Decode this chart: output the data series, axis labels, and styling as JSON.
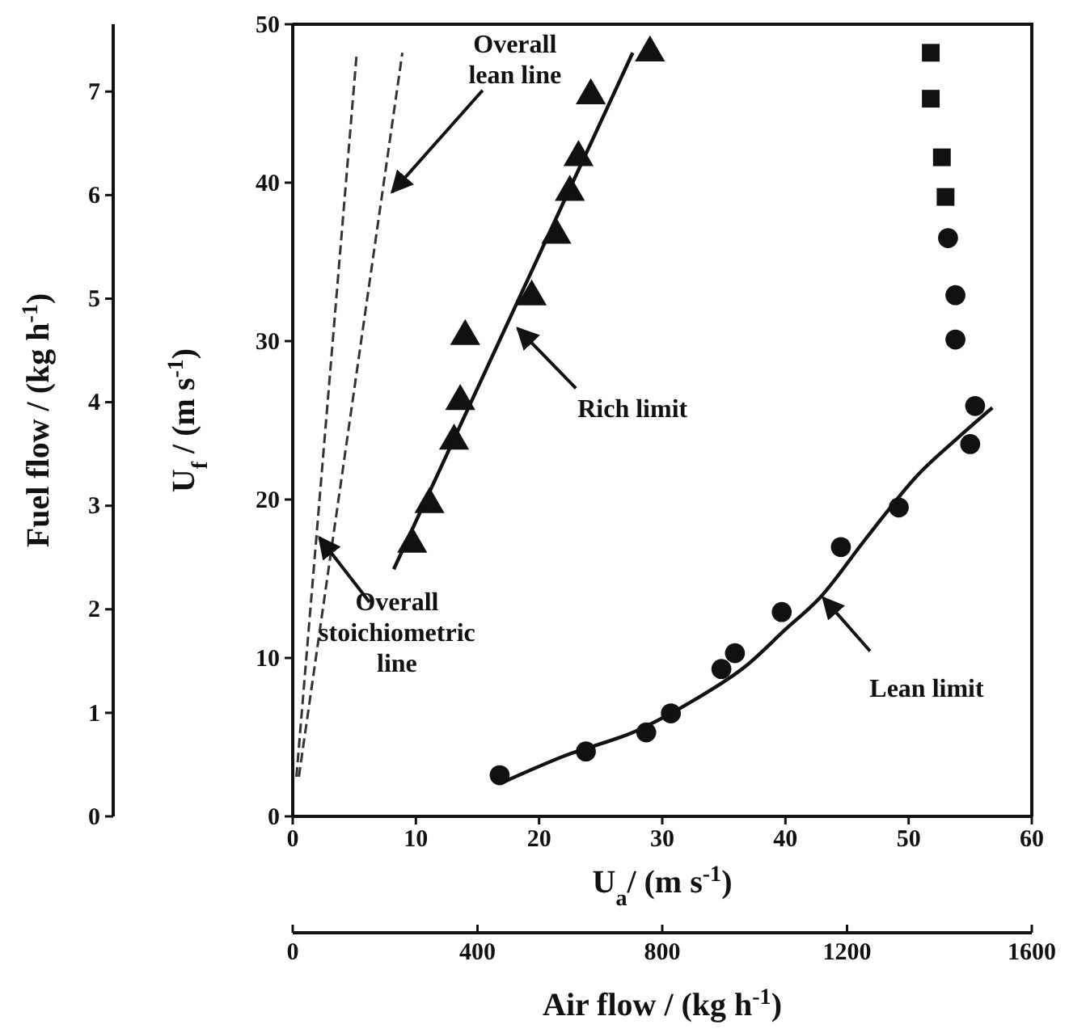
{
  "chart_data": {
    "type": "scatter",
    "xlabel": "U$_{a}$/ (m s$^{-1}$)",
    "ylabel": "U$_{f}$ / (m s$^{-1}$)",
    "y2label": "Fuel flow / (kg h$^{-1}$)",
    "x2label": "Air flow / (kg h$^{-1}$)",
    "xlim": [
      0,
      60
    ],
    "xticks": [
      0,
      10,
      20,
      30,
      40,
      50,
      60
    ],
    "ylim": [
      0,
      50
    ],
    "yticks": [
      0,
      10,
      20,
      30,
      40,
      50
    ],
    "y2lim": [
      0,
      7.65
    ],
    "y2ticks": [
      0,
      1,
      2,
      3,
      4,
      5,
      6,
      7
    ],
    "x2lim": [
      0,
      1600
    ],
    "x2ticks": [
      0,
      400,
      800,
      1200,
      1600
    ],
    "grid": false,
    "series": [
      {
        "marker": "triangle",
        "color": "#111111",
        "x": [
          29.0,
          24.2,
          23.2,
          22.5,
          21.4,
          19.4,
          14.0,
          13.6,
          13.1,
          11.1,
          9.7
        ],
        "values": [
          48.2,
          45.5,
          41.6,
          39.4,
          36.7,
          32.8,
          30.3,
          26.2,
          23.7,
          19.7,
          17.2
        ]
      },
      {
        "type": "line",
        "marker": "none",
        "line_style": "solid",
        "color": "#111111",
        "x": [
          8.2,
          27.6
        ],
        "values": [
          15.6,
          48.2
        ]
      },
      {
        "marker": "circle",
        "color": "#111111",
        "x": [
          16.8,
          23.8,
          28.7,
          30.7,
          34.8,
          35.9,
          39.7,
          44.5,
          49.2,
          55.0,
          55.4
        ],
        "values": [
          2.6,
          4.1,
          5.3,
          6.5,
          9.3,
          10.3,
          12.9,
          17.0,
          19.5,
          23.5,
          25.9
        ]
      },
      {
        "type": "line",
        "marker": "none",
        "line_style": "solid",
        "color": "#111111",
        "x": [
          17.2,
          22.0,
          27.9,
          32.5,
          36.8,
          40.0,
          42.8,
          46.5,
          50.8,
          54.0,
          56.8
        ],
        "values": [
          2.2,
          3.8,
          5.4,
          7.3,
          9.5,
          11.8,
          13.8,
          17.5,
          21.6,
          23.9,
          25.8
        ]
      },
      {
        "marker": "square",
        "color": "#111111",
        "x": [
          51.8,
          51.8,
          52.7,
          53.0
        ],
        "values": [
          48.2,
          45.3,
          41.6,
          39.1
        ]
      },
      {
        "marker": "circle",
        "color": "#111111",
        "x": [
          53.2,
          53.8,
          53.8
        ],
        "values": [
          36.5,
          32.9,
          30.1
        ]
      },
      {
        "type": "line",
        "marker": "none",
        "line_style": "dashed",
        "color": "#333333",
        "x": [
          0.3,
          5.2
        ],
        "values": [
          2.5,
          48.2
        ]
      },
      {
        "type": "line",
        "marker": "none",
        "line_style": "dashed",
        "color": "#333333",
        "x": [
          0.5,
          8.9
        ],
        "values": [
          2.5,
          48.2
        ]
      }
    ],
    "annotations": [
      {
        "text": "Overall lean line",
        "x": 7.8,
        "y": 39.4
      },
      {
        "text": "Rich limit",
        "x": 18.0,
        "y": 30.8
      },
      {
        "text": "Overall stoichiometric line",
        "x": 1.9,
        "y": 17.6
      },
      {
        "text": "Lean limit",
        "x": 42.8,
        "y": 13.8
      }
    ]
  }
}
